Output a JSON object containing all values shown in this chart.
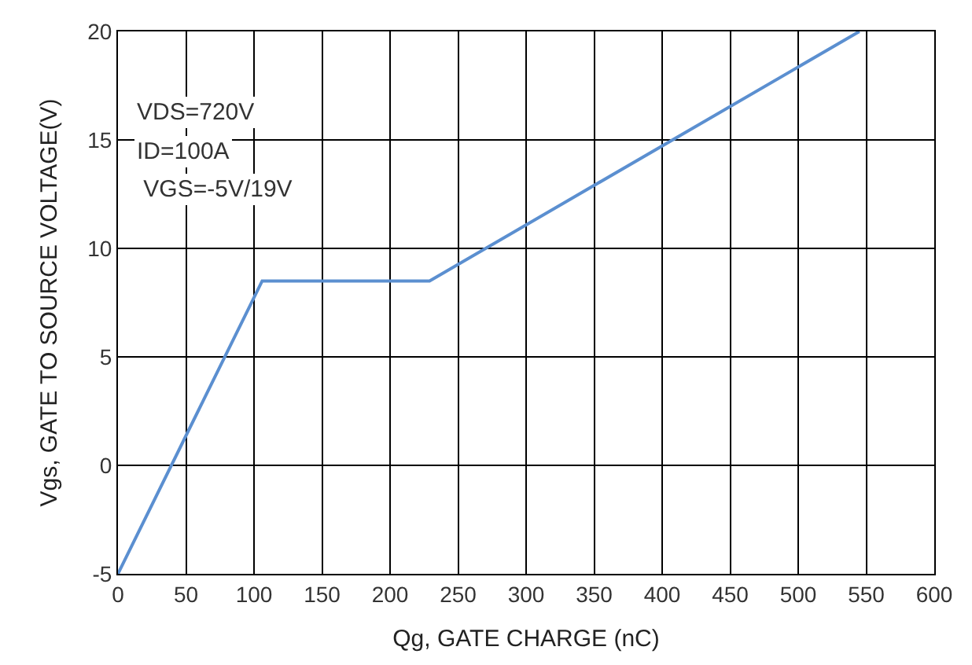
{
  "chart_data": {
    "type": "line",
    "xlabel": "Qg, GATE CHARGE (nC)",
    "ylabel": "Vgs, GATE TO SOURCE VOLTAGE(V)",
    "x": [
      0,
      106,
      229,
      545
    ],
    "series": [
      {
        "color": "#5b8fd0",
        "values": [
          -5,
          8.5,
          8.5,
          20
        ]
      }
    ],
    "xlim": [
      0,
      600
    ],
    "xticks": [
      0,
      50,
      100,
      150,
      200,
      250,
      300,
      350,
      400,
      450,
      500,
      550,
      600
    ],
    "ylim": [
      -5,
      20
    ],
    "yticks": [
      -5,
      0,
      5,
      10,
      15,
      20
    ],
    "grid": true,
    "line_style": "solid",
    "marker": "none",
    "annotations": [
      "VDS=720V",
      "ID=100A",
      " VGS=-5V/19V"
    ]
  }
}
